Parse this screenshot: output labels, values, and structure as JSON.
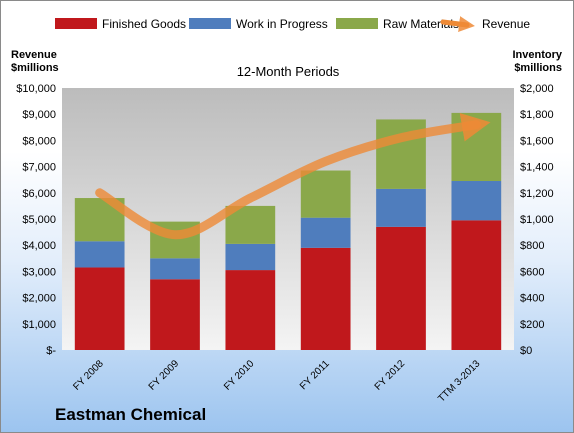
{
  "company": "Eastman Chemical",
  "chart_data": {
    "type": "bar",
    "title": "12-Month Periods",
    "categories": [
      "FY 2008",
      "FY 2009",
      "FY 2010",
      "FY 2011",
      "FY 2012",
      "TTM 3-2013"
    ],
    "stacked": true,
    "left_axis": {
      "label_line1": "Revenue",
      "label_line2": "$millions",
      "ylim": [
        0,
        10000
      ],
      "ticks": [
        "$-",
        "$1,000",
        "$2,000",
        "$3,000",
        "$4,000",
        "$5,000",
        "$6,000",
        "$7,000",
        "$8,000",
        "$9,000",
        "$10,000"
      ]
    },
    "right_axis": {
      "label_line1": "Inventory",
      "label_line2": "$millions",
      "ylim": [
        0,
        2000
      ],
      "ticks": [
        "$0",
        "$200",
        "$400",
        "$600",
        "$800",
        "$1,000",
        "$1,200",
        "$1,400",
        "$1,600",
        "$1,800",
        "$2,000"
      ]
    },
    "series": [
      {
        "name": "Finished Goods",
        "axis": "right",
        "kind": "bar",
        "color": "#c0181c",
        "values": [
          630,
          540,
          610,
          780,
          940,
          990
        ]
      },
      {
        "name": "Work in Progress",
        "axis": "right",
        "kind": "bar",
        "color": "#4f7dbd",
        "values": [
          200,
          160,
          200,
          230,
          290,
          300
        ]
      },
      {
        "name": "Raw Materials",
        "axis": "right",
        "kind": "bar",
        "color": "#8aa84a",
        "values": [
          330,
          280,
          290,
          360,
          530,
          520
        ]
      },
      {
        "name": "Revenue",
        "axis": "left",
        "kind": "line",
        "color": "#ee8a36",
        "values": [
          6000,
          4400,
          5800,
          7200,
          8100,
          8600
        ]
      }
    ],
    "grid": false,
    "legend": "top"
  }
}
